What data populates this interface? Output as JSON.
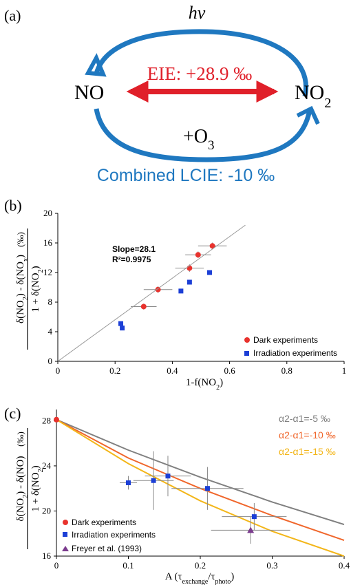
{
  "panel_a": {
    "label": "(a)",
    "hv": "hv",
    "eie": "EIE: +28.9 ‰",
    "no": "NO",
    "no2": "NO",
    "no2_sub": "2",
    "o3": "+O",
    "o3_sub": "3",
    "lcie": "Combined LCIE: -10 ‰",
    "colors": {
      "cycle": "#1f78c0",
      "eie": "#e0202a"
    }
  },
  "chart_data": [
    {
      "type": "scatter",
      "panel_label": "(b)",
      "xlabel": "1-f(NO2)",
      "ylabel_num": "δ(NO2) - δ(NOx)",
      "ylabel_den": "1 + δ(NO2)",
      "ylabel_unit": "(‰)",
      "xlim": [
        0,
        1
      ],
      "ylim": [
        0,
        20
      ],
      "x_ticks": [
        "0",
        "0.2",
        "0.4",
        "0.6",
        "0.8",
        "1"
      ],
      "y_ticks": [
        "0",
        "4",
        "8",
        "12",
        "16",
        "20"
      ],
      "annotations": {
        "slope": "Slope=28.1",
        "r2": "R²=0.9975"
      },
      "fit_line": {
        "slope": 28.1,
        "x_end": 0.655,
        "color": "#9a9a9a"
      },
      "legend_position": "bottom-right",
      "series": [
        {
          "name": "Dark experiments",
          "marker": "circle",
          "color": "#e8322d",
          "points": [
            {
              "x": 0.3,
              "y": 7.4,
              "xerr": 0.045,
              "yerr": 0.4
            },
            {
              "x": 0.35,
              "y": 9.7,
              "xerr": 0.05,
              "yerr": 0.45
            },
            {
              "x": 0.46,
              "y": 12.6,
              "xerr": 0.05,
              "yerr": 0.5
            },
            {
              "x": 0.49,
              "y": 14.4,
              "xerr": 0.045,
              "yerr": 0.45
            },
            {
              "x": 0.54,
              "y": 15.6,
              "xerr": 0.05,
              "yerr": 0.45
            }
          ]
        },
        {
          "name": "Irradiation experiments",
          "marker": "square",
          "color": "#1c3fd6",
          "points": [
            {
              "x": 0.22,
              "y": 5.1
            },
            {
              "x": 0.225,
              "y": 4.5
            },
            {
              "x": 0.43,
              "y": 9.5
            },
            {
              "x": 0.46,
              "y": 10.7
            },
            {
              "x": 0.53,
              "y": 12.0
            }
          ]
        }
      ]
    },
    {
      "type": "scatter",
      "panel_label": "(c)",
      "xlabel": "A (τexchange/τphoto)",
      "ylabel_num": "δ(NO2) - δ(NO)",
      "ylabel_den": "1 + δ(NO2)",
      "ylabel_unit": "(‰)",
      "xlim": [
        0,
        0.4
      ],
      "ylim": [
        16,
        29
      ],
      "x_ticks": [
        "0",
        "0.1",
        "0.2",
        "0.3",
        "0.4"
      ],
      "y_ticks": [
        "16",
        "20",
        "24",
        "28"
      ],
      "curves": [
        {
          "label": "α2-α1=-5 ‰",
          "color": "#808080",
          "values": [
            [
              0,
              28.1
            ],
            [
              0.1,
              25.4
            ],
            [
              0.2,
              23.0
            ],
            [
              0.3,
              20.8
            ],
            [
              0.4,
              18.8
            ]
          ]
        },
        {
          "label": "α2-α1=-10 ‰",
          "color": "#f0662b",
          "values": [
            [
              0,
              28.1
            ],
            [
              0.1,
              24.7
            ],
            [
              0.2,
              22.0
            ],
            [
              0.3,
              19.6
            ],
            [
              0.4,
              17.4
            ]
          ]
        },
        {
          "label": "α2-α1=-15 ‰",
          "color": "#f3b619",
          "values": [
            [
              0,
              28.1
            ],
            [
              0.1,
              24.2
            ],
            [
              0.2,
              20.9
            ],
            [
              0.3,
              18.2
            ],
            [
              0.4,
              16.0
            ]
          ]
        }
      ],
      "legend_position": "bottom-left",
      "series": [
        {
          "name": "Dark experiments",
          "marker": "circle",
          "color": "#e8322d",
          "points": [
            {
              "x": 0.0,
              "y": 28.1
            }
          ]
        },
        {
          "name": "Irradiation experiments",
          "marker": "square",
          "color": "#1c3fd6",
          "points": [
            {
              "x": 0.1,
              "y": 22.5,
              "xerr": 0.012,
              "yerr": 0.6
            },
            {
              "x": 0.135,
              "y": 22.7,
              "xerr": 0.028,
              "yerr": 2.6
            },
            {
              "x": 0.155,
              "y": 23.1,
              "xerr": 0.032,
              "yerr": 1.8
            },
            {
              "x": 0.21,
              "y": 22.0,
              "xerr": 0.05,
              "yerr": 1.9
            },
            {
              "x": 0.275,
              "y": 19.5,
              "xerr": 0.045,
              "yerr": 1.2
            }
          ]
        },
        {
          "name": "Freyer et al. (1993)",
          "marker": "triangle",
          "color": "#7b3b8e",
          "points": [
            {
              "x": 0.27,
              "y": 18.3,
              "xerr": 0.055,
              "yerr": 1.2
            }
          ]
        }
      ]
    }
  ]
}
